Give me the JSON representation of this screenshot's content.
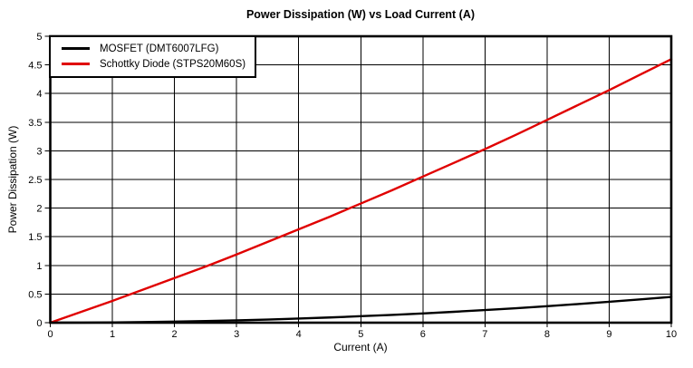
{
  "chart_data": {
    "type": "line",
    "title": "Power Dissipation (W) vs Load Current (A)",
    "xlabel": "Current (A)",
    "ylabel": "Power Dissipation (W)",
    "xlim": [
      0,
      10
    ],
    "ylim": [
      0,
      5
    ],
    "grid": true,
    "legend_position": "top-left",
    "x_ticks": {
      "values": [
        0,
        1,
        2,
        3,
        4,
        5,
        6,
        7,
        8,
        9,
        10
      ],
      "labels": [
        "0",
        "1",
        "2",
        "3",
        "4",
        "5",
        "6",
        "7",
        "8",
        "9",
        "10"
      ]
    },
    "y_ticks": {
      "values": [
        0,
        0.5,
        1,
        1.5,
        2,
        2.5,
        3,
        3.5,
        4,
        4.5,
        5
      ],
      "labels": [
        "0",
        "0.5",
        "1",
        "1.5",
        "2",
        "2.5",
        "3",
        "3.5",
        "4",
        "4.5",
        "5"
      ]
    },
    "x": [
      0,
      0.5,
      1,
      1.5,
      2,
      2.5,
      3,
      3.5,
      4,
      4.5,
      5,
      5.5,
      6,
      6.5,
      7,
      7.5,
      8,
      8.5,
      9,
      9.5,
      10
    ],
    "series": [
      {
        "name": "MOSFET (DMT6007LFG)",
        "color": "#000000",
        "line_width": 2.4,
        "values": [
          0,
          0.001,
          0.005,
          0.01,
          0.018,
          0.028,
          0.041,
          0.055,
          0.072,
          0.091,
          0.113,
          0.136,
          0.162,
          0.19,
          0.221,
          0.253,
          0.288,
          0.325,
          0.365,
          0.406,
          0.45
        ]
      },
      {
        "name": "Schottky Diode (STPS20M60S)",
        "color": "#e00000",
        "line_width": 2.4,
        "values": [
          0,
          0.19,
          0.38,
          0.58,
          0.78,
          0.98,
          1.19,
          1.41,
          1.63,
          1.85,
          2.08,
          2.31,
          2.55,
          2.79,
          3.03,
          3.28,
          3.54,
          3.8,
          4.06,
          4.33,
          4.6
        ]
      }
    ]
  }
}
